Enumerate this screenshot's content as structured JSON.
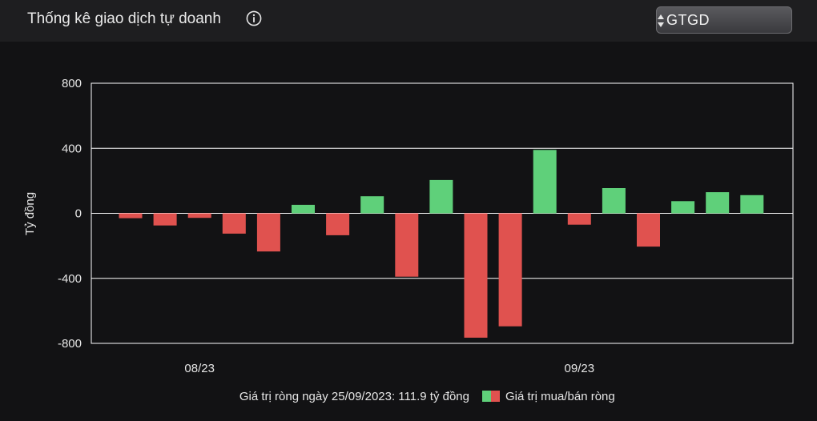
{
  "header": {
    "title": "Thống kê giao dịch tự doanh",
    "info_icon": "info-icon",
    "select_value": "GTGD"
  },
  "colors": {
    "positive": "#5fd07a",
    "negative": "#e0524f",
    "grid": "#ffffff",
    "background": "#121214"
  },
  "chart_data": {
    "type": "bar",
    "title": "",
    "xlabel": "",
    "ylabel": "Tỷ đồng",
    "ylim": [
      -800,
      800
    ],
    "yticks": [
      800,
      400,
      0,
      -400,
      -800
    ],
    "ytick_labels": [
      "800",
      "400",
      "0",
      "-400",
      "-800"
    ],
    "xtick_labels": [
      {
        "label": "08/23",
        "bar_index": 2
      },
      {
        "label": "09/23",
        "bar_index": 13
      }
    ],
    "series": [
      {
        "name": "Giá trị mua/bán ròng",
        "values": [
          -30,
          -75,
          -28,
          -125,
          -235,
          52,
          -135,
          105,
          -390,
          205,
          -765,
          -695,
          390,
          -70,
          155,
          -205,
          75,
          130,
          112
        ]
      }
    ],
    "legend_position": "bottom",
    "footer_note": "Giá trị ròng ngày 25/09/2023: 111.9 tỷ đồng",
    "grid": true
  }
}
